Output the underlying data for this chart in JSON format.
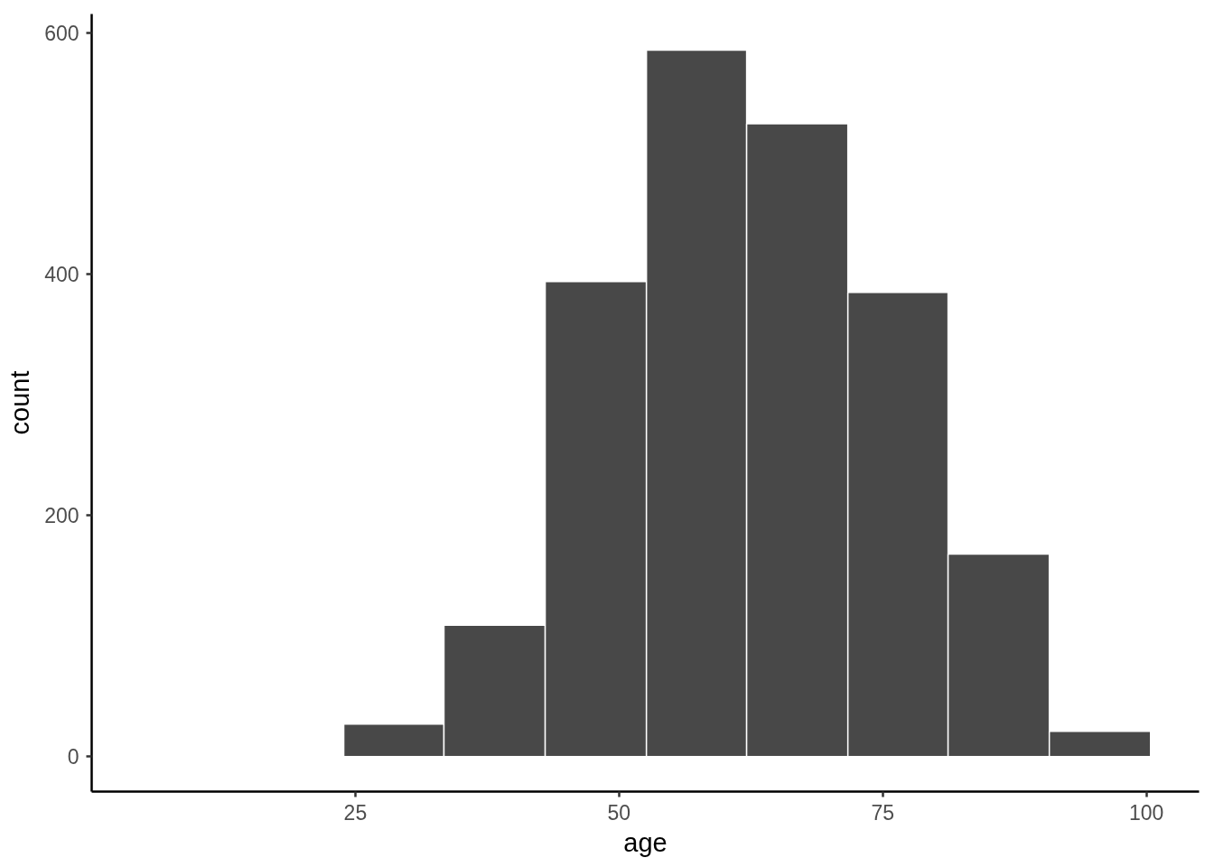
{
  "chart_data": {
    "type": "histogram",
    "xlabel": "age",
    "ylabel": "count",
    "bins": [
      23.9,
      33.4,
      43.0,
      52.6,
      62.1,
      71.7,
      81.2,
      90.8,
      100.4
    ],
    "values": [
      27,
      109,
      394,
      586,
      525,
      385,
      168,
      21
    ],
    "color": "#484848",
    "xlim": [
      0,
      105
    ],
    "ylim": [
      -29,
      616
    ],
    "xticks": [
      25,
      50,
      75,
      100
    ],
    "yticks": [
      0,
      200,
      400,
      600
    ],
    "grid": false
  }
}
